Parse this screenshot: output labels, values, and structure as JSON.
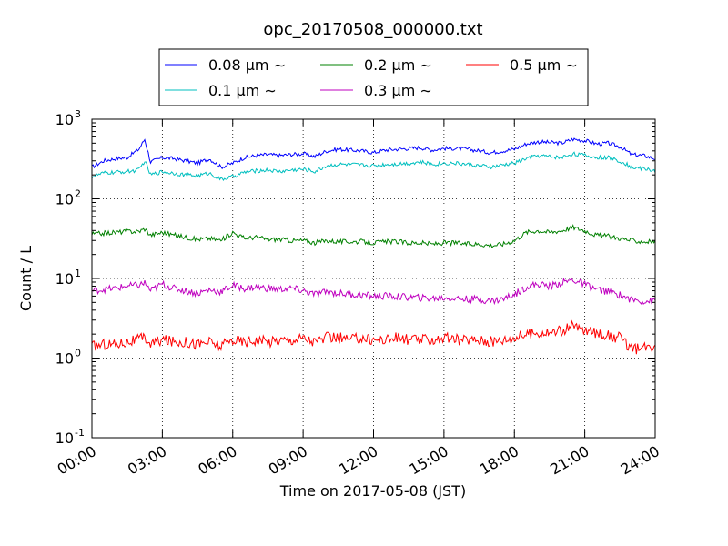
{
  "chart_data": {
    "type": "line",
    "title": "opc_20170508_000000.txt",
    "xlabel": "Time on 2017-05-08 (JST)",
    "ylabel": "Count / L",
    "y_scale": "log",
    "ylim": [
      0.1,
      1000
    ],
    "xlim": [
      "00:00",
      "24:00"
    ],
    "x_unit": "hours",
    "x_ticks": [
      "00:00",
      "03:00",
      "06:00",
      "09:00",
      "12:00",
      "15:00",
      "18:00",
      "21:00",
      "24:00"
    ],
    "y_ticks": [
      {
        "base": "10",
        "exp": "-1"
      },
      {
        "base": "10",
        "exp": "0"
      },
      {
        "base": "10",
        "exp": "1"
      },
      {
        "base": "10",
        "exp": "2"
      },
      {
        "base": "10",
        "exp": "3"
      }
    ],
    "grid": true,
    "legend_position": "top-center",
    "x": [
      "00:00",
      "00:30",
      "01:00",
      "01:30",
      "02:00",
      "02:15",
      "02:30",
      "03:00",
      "03:30",
      "04:00",
      "04:30",
      "05:00",
      "05:30",
      "06:00",
      "06:30",
      "07:00",
      "07:30",
      "08:00",
      "08:30",
      "09:00",
      "09:30",
      "10:00",
      "10:30",
      "11:00",
      "11:30",
      "12:00",
      "12:30",
      "13:00",
      "13:30",
      "14:00",
      "14:30",
      "15:00",
      "15:30",
      "16:00",
      "16:30",
      "17:00",
      "17:30",
      "18:00",
      "18:30",
      "19:00",
      "19:30",
      "20:00",
      "20:30",
      "21:00",
      "21:30",
      "22:00",
      "22:30",
      "23:00",
      "23:30",
      "24:00"
    ],
    "series": [
      {
        "name": "0.08 μm ∼",
        "color": "#0000ff",
        "values": [
          250,
          300,
          320,
          330,
          420,
          560,
          290,
          330,
          320,
          300,
          280,
          320,
          250,
          280,
          330,
          350,
          360,
          350,
          360,
          370,
          340,
          400,
          420,
          410,
          400,
          380,
          410,
          420,
          430,
          440,
          410,
          430,
          430,
          420,
          400,
          380,
          400,
          420,
          490,
          520,
          510,
          500,
          560,
          540,
          490,
          500,
          450,
          360,
          350,
          320
        ]
      },
      {
        "name": "0.1 μm ∼",
        "color": "#00bfbf",
        "values": [
          190,
          210,
          215,
          220,
          230,
          300,
          200,
          220,
          210,
          200,
          195,
          210,
          175,
          190,
          215,
          225,
          230,
          220,
          230,
          235,
          220,
          260,
          270,
          270,
          265,
          260,
          270,
          275,
          280,
          290,
          270,
          280,
          280,
          270,
          260,
          250,
          265,
          280,
          320,
          350,
          340,
          330,
          370,
          350,
          330,
          330,
          300,
          250,
          240,
          225
        ]
      },
      {
        "name": "0.2 μm ∼",
        "color": "#008000",
        "values": [
          36,
          37,
          38,
          39,
          39,
          42,
          35,
          38,
          35,
          33,
          31,
          32,
          30,
          38,
          32,
          33,
          31,
          31,
          30,
          30,
          28,
          30,
          29,
          29,
          29,
          28,
          29,
          29,
          28,
          28,
          27,
          28,
          28,
          27,
          27,
          26,
          27,
          30,
          38,
          40,
          38,
          40,
          44,
          40,
          35,
          34,
          32,
          30,
          29,
          29
        ]
      },
      {
        "name": "0.3 μm ∼",
        "color": "#bf00bf",
        "values": [
          7.0,
          7.3,
          7.5,
          8.0,
          8.2,
          8.8,
          7.0,
          8.5,
          7.5,
          7.0,
          6.5,
          7.2,
          6.8,
          8.2,
          7.5,
          7.8,
          7.5,
          7.3,
          7.5,
          7.0,
          6.3,
          6.8,
          6.5,
          6.3,
          6.2,
          6.0,
          6.0,
          5.9,
          5.8,
          5.7,
          5.6,
          5.7,
          5.6,
          5.5,
          5.5,
          5.2,
          5.5,
          6.3,
          7.8,
          8.5,
          8.0,
          8.8,
          9.6,
          8.4,
          7.3,
          6.8,
          6.2,
          5.4,
          5.2,
          5.2
        ]
      },
      {
        "name": "0.5 μm ∼",
        "color": "#ff0000",
        "values": [
          1.4,
          1.5,
          1.5,
          1.6,
          1.7,
          1.8,
          1.5,
          1.7,
          1.6,
          1.6,
          1.5,
          1.6,
          1.4,
          1.7,
          1.6,
          1.7,
          1.6,
          1.7,
          1.7,
          1.8,
          1.6,
          1.8,
          1.8,
          1.7,
          1.8,
          1.7,
          1.7,
          1.8,
          1.7,
          1.7,
          1.7,
          1.8,
          1.7,
          1.7,
          1.7,
          1.6,
          1.7,
          1.8,
          2.0,
          2.1,
          2.1,
          2.2,
          2.5,
          2.2,
          2.1,
          1.9,
          1.8,
          1.3,
          1.3,
          1.5
        ]
      }
    ]
  }
}
